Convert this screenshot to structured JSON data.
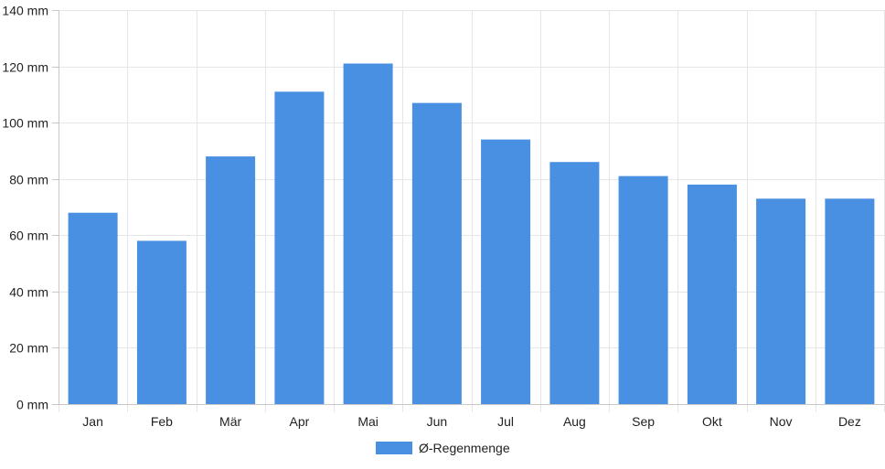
{
  "chart_data": {
    "type": "bar",
    "categories": [
      "Jan",
      "Feb",
      "Mär",
      "Apr",
      "Mai",
      "Jun",
      "Jul",
      "Aug",
      "Sep",
      "Okt",
      "Nov",
      "Dez"
    ],
    "series": [
      {
        "name": "Ø-Regenmenge",
        "values": [
          68,
          58,
          88,
          111,
          121,
          107,
          94,
          86,
          81,
          78,
          73,
          73
        ],
        "color": "#4a90e2"
      }
    ],
    "y_tick_labels": [
      "0 mm",
      "20 mm",
      "40 mm",
      "60 mm",
      "80 mm",
      "100 mm",
      "120 mm",
      "140 mm"
    ],
    "ylim": [
      0,
      140
    ],
    "y_tick_step": 20,
    "y_unit": "mm",
    "grid": true,
    "legend_position": "bottom",
    "colors": {
      "bar": "#4a90e2",
      "grid": "#e6e6e6",
      "axis": "#c8c8c8",
      "text": "#222222"
    }
  }
}
